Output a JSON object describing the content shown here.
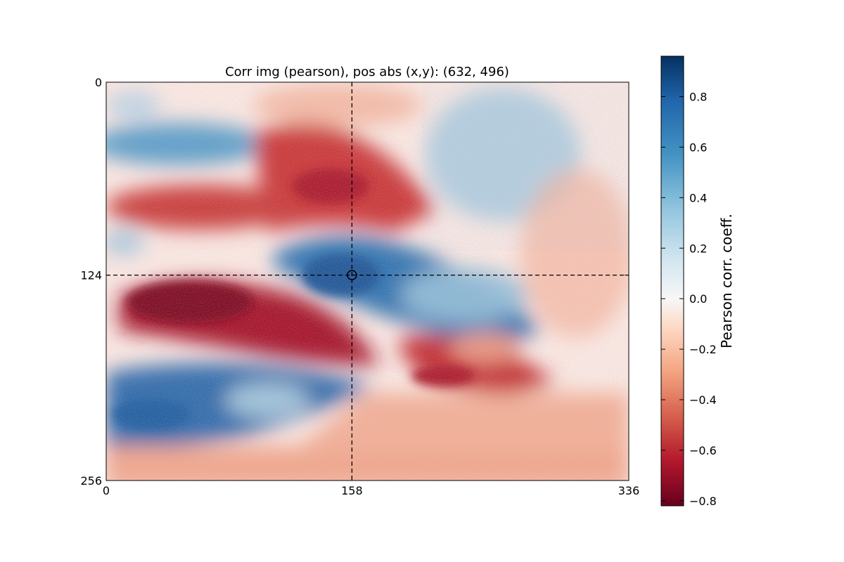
{
  "chart_data": {
    "type": "heatmap",
    "title": "Corr img (pearson), pos abs (x,y): (632, 496)",
    "xlim": [
      0,
      336
    ],
    "ylim": [
      0,
      256
    ],
    "y_inverted": true,
    "x_ticks": [
      0,
      158,
      336
    ],
    "y_ticks": [
      0,
      124,
      256
    ],
    "marker": {
      "x": 158,
      "y": 124,
      "shape": "circle"
    },
    "crosshair": {
      "x": 158,
      "y": 124,
      "style": "dashed"
    },
    "colorbar": {
      "label": "Pearson corr. coeff.",
      "min": -0.82,
      "max": 0.96,
      "ticks": [
        -0.8,
        -0.6,
        -0.4,
        -0.2,
        0.0,
        0.2,
        0.4,
        0.6,
        0.8
      ],
      "tick_labels": [
        "−0.8",
        "−0.6",
        "−0.4",
        "−0.2",
        "0.0",
        "0.2",
        "0.4",
        "0.6",
        "0.8"
      ],
      "colormap": "RdBu",
      "stops": [
        "#67001f",
        "#b2182b",
        "#d6604d",
        "#f4a582",
        "#fddbc7",
        "#f7f7f7",
        "#d1e5f0",
        "#92c5de",
        "#4393c3",
        "#2166ac",
        "#053061"
      ]
    },
    "regions": [
      {
        "label": "upper-left blue band",
        "x": 55,
        "y": 40,
        "value": 0.45
      },
      {
        "label": "upper red wedge",
        "x": 140,
        "y": 65,
        "value": -0.55
      },
      {
        "label": "left red band",
        "x": 60,
        "y": 80,
        "value": -0.5
      },
      {
        "label": "central blue wedge",
        "x": 160,
        "y": 124,
        "value": 0.85
      },
      {
        "label": "lower-left red lobe",
        "x": 70,
        "y": 145,
        "value": -0.75
      },
      {
        "label": "lower-middle red lobe",
        "x": 240,
        "y": 185,
        "value": -0.6
      },
      {
        "label": "bottom-left blue band",
        "x": 50,
        "y": 205,
        "value": 0.6
      },
      {
        "label": "upper-right blue lobe",
        "x": 255,
        "y": 55,
        "value": 0.35
      },
      {
        "label": "bottom red strip",
        "x": 200,
        "y": 240,
        "value": -0.3
      }
    ]
  }
}
